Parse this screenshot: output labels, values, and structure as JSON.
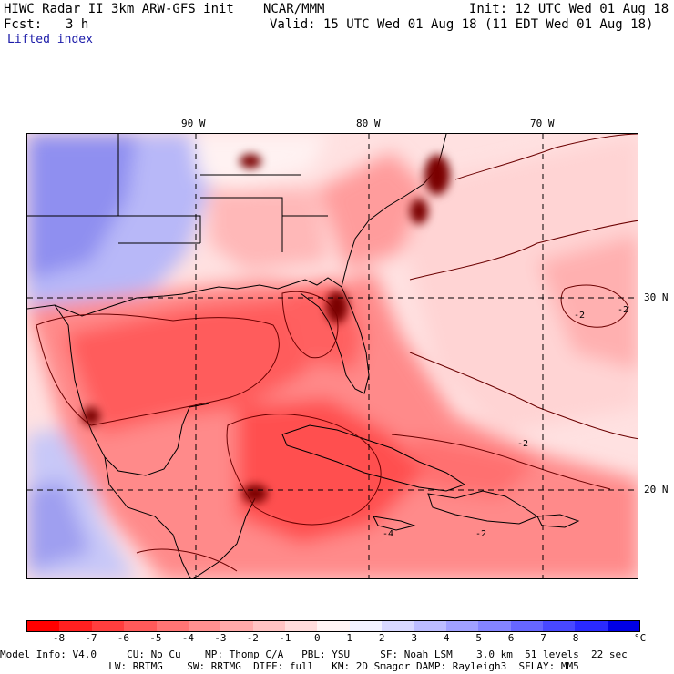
{
  "header": {
    "title": "HIWC Radar II 3km ARW-GFS init",
    "agency": "NCAR/MMM",
    "init": "Init: 12 UTC Wed 01 Aug 18",
    "fcst_label": "Fcst:",
    "fcst_value": "3 h",
    "valid": "Valid: 15 UTC Wed 01 Aug 18 (11 EDT Wed 01 Aug 18)",
    "field": "Lifted index"
  },
  "map": {
    "lon_labels": [
      "90 W",
      "80 W",
      "70 W"
    ],
    "lat_labels": [
      "30 N",
      "20 N"
    ],
    "contour_labels": [
      "-2",
      "-2",
      "-2",
      "-4",
      "-2"
    ]
  },
  "colorbar": {
    "colors": [
      "#ff0000",
      "#ff2020",
      "#ff3e3e",
      "#ff5a5a",
      "#ff7575",
      "#ff9090",
      "#ffaaaa",
      "#ffc3c3",
      "#ffdcdc",
      "#fff4f4",
      "#f2f2ff",
      "#d8d8ff",
      "#bcbcff",
      "#a0a0ff",
      "#8484ff",
      "#6666ff",
      "#4848ff",
      "#2a2aff",
      "#0000e6"
    ],
    "ticks": [
      "-8",
      "-7",
      "-6",
      "-5",
      "-4",
      "-3",
      "-2",
      "-1",
      "0",
      "1",
      "2",
      "3",
      "4",
      "5",
      "6",
      "7",
      "8"
    ],
    "unit": "°C"
  },
  "model_info": {
    "line1": "Model Info: V4.0     CU: No Cu    MP: Thomp C/A   PBL: YSU     SF: Noah LSM    3.0 km  51 levels  22 sec",
    "line2": "                  LW: RRTMG    SW: RRTMG  DIFF: full   KM: 2D Smagor DAMP: Rayleigh3  SFLAY: MM5"
  }
}
